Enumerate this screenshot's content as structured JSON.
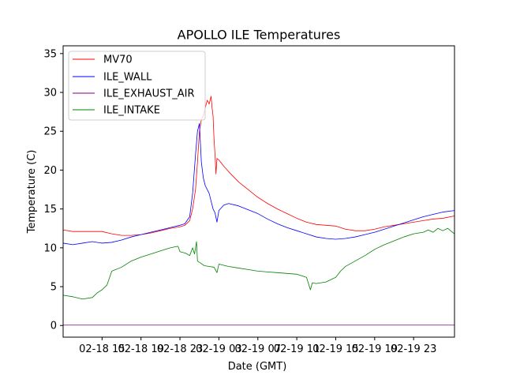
{
  "chart_data": {
    "type": "line",
    "title": "APOLLO ILE Temperatures",
    "xlabel": "Date (GMT)",
    "ylabel": "Temperature (C)",
    "x_unit": "hours since 02-18 11:00 GMT",
    "xlim": [
      0,
      40.2
    ],
    "ylim": [
      -1.5,
      36
    ],
    "yticks": [
      0,
      5,
      10,
      15,
      20,
      25,
      30,
      35
    ],
    "xticks": [
      {
        "x": 4,
        "label": "02-18 15"
      },
      {
        "x": 8,
        "label": "02-18 19"
      },
      {
        "x": 12,
        "label": "02-18 23"
      },
      {
        "x": 16,
        "label": "02-19 03"
      },
      {
        "x": 20,
        "label": "02-19 07"
      },
      {
        "x": 24,
        "label": "02-19 11"
      },
      {
        "x": 28,
        "label": "02-19 15"
      },
      {
        "x": 32,
        "label": "02-19 19"
      },
      {
        "x": 36,
        "label": "02-19 23"
      }
    ],
    "legend_position": "top-left",
    "series": [
      {
        "name": "MV70",
        "color": "#ff0000",
        "points": [
          [
            0,
            12.3
          ],
          [
            1,
            12.1
          ],
          [
            2,
            12.1
          ],
          [
            3,
            12.1
          ],
          [
            4,
            12.1
          ],
          [
            5,
            11.8
          ],
          [
            6,
            11.6
          ],
          [
            7,
            11.6
          ],
          [
            8,
            11.7
          ],
          [
            9,
            11.9
          ],
          [
            10,
            12.2
          ],
          [
            11,
            12.5
          ],
          [
            12,
            12.7
          ],
          [
            12.5,
            12.9
          ],
          [
            13,
            13.5
          ],
          [
            13.3,
            15.0
          ],
          [
            13.6,
            17.5
          ],
          [
            13.8,
            21.0
          ],
          [
            14.0,
            25.0
          ],
          [
            14.2,
            26.5
          ],
          [
            14.4,
            27.0
          ],
          [
            14.6,
            28.0
          ],
          [
            14.8,
            29.0
          ],
          [
            15.0,
            28.5
          ],
          [
            15.2,
            29.5
          ],
          [
            15.3,
            28.0
          ],
          [
            15.4,
            27.0
          ],
          [
            15.5,
            24.0
          ],
          [
            15.6,
            22.0
          ],
          [
            15.7,
            19.5
          ],
          [
            15.8,
            21.5
          ],
          [
            16.0,
            21.3
          ],
          [
            16.5,
            20.5
          ],
          [
            17.0,
            19.8
          ],
          [
            18.0,
            18.5
          ],
          [
            19.0,
            17.5
          ],
          [
            20.0,
            16.5
          ],
          [
            21.0,
            15.7
          ],
          [
            22.0,
            15.0
          ],
          [
            23.0,
            14.4
          ],
          [
            24.0,
            13.8
          ],
          [
            25.0,
            13.3
          ],
          [
            26.0,
            13.0
          ],
          [
            27.0,
            12.9
          ],
          [
            28.0,
            12.8
          ],
          [
            29.0,
            12.4
          ],
          [
            30.0,
            12.2
          ],
          [
            31.0,
            12.2
          ],
          [
            32.0,
            12.4
          ],
          [
            33.0,
            12.7
          ],
          [
            34.0,
            12.9
          ],
          [
            35.0,
            13.1
          ],
          [
            36.0,
            13.3
          ],
          [
            37.0,
            13.5
          ],
          [
            38.0,
            13.7
          ],
          [
            39.0,
            13.8
          ],
          [
            40.2,
            14.1
          ]
        ]
      },
      {
        "name": "ILE_WALL",
        "color": "#0000ff",
        "points": [
          [
            0,
            10.6
          ],
          [
            1,
            10.4
          ],
          [
            2,
            10.6
          ],
          [
            3,
            10.8
          ],
          [
            4,
            10.6
          ],
          [
            5,
            10.7
          ],
          [
            6,
            11.0
          ],
          [
            7,
            11.4
          ],
          [
            8,
            11.7
          ],
          [
            9,
            12.0
          ],
          [
            10,
            12.3
          ],
          [
            11,
            12.6
          ],
          [
            12,
            12.9
          ],
          [
            12.5,
            13.1
          ],
          [
            13,
            14.0
          ],
          [
            13.3,
            17.0
          ],
          [
            13.6,
            22.0
          ],
          [
            13.8,
            25.0
          ],
          [
            14.0,
            26.0
          ],
          [
            14.2,
            21.0
          ],
          [
            14.4,
            19.0
          ],
          [
            14.6,
            18.0
          ],
          [
            14.8,
            17.5
          ],
          [
            15.0,
            17.0
          ],
          [
            15.2,
            16.0
          ],
          [
            15.4,
            15.0
          ],
          [
            15.6,
            14.5
          ],
          [
            15.8,
            13.3
          ],
          [
            16.0,
            14.8
          ],
          [
            16.5,
            15.5
          ],
          [
            17.0,
            15.7
          ],
          [
            18.0,
            15.4
          ],
          [
            19.0,
            14.9
          ],
          [
            20.0,
            14.4
          ],
          [
            21.0,
            13.7
          ],
          [
            22.0,
            13.1
          ],
          [
            23.0,
            12.6
          ],
          [
            24.0,
            12.2
          ],
          [
            25.0,
            11.8
          ],
          [
            26.0,
            11.4
          ],
          [
            27.0,
            11.2
          ],
          [
            28.0,
            11.1
          ],
          [
            29.0,
            11.2
          ],
          [
            30.0,
            11.4
          ],
          [
            31.0,
            11.7
          ],
          [
            32.0,
            12.0
          ],
          [
            33.0,
            12.4
          ],
          [
            34.0,
            12.8
          ],
          [
            35.0,
            13.2
          ],
          [
            36.0,
            13.6
          ],
          [
            37.0,
            14.0
          ],
          [
            38.0,
            14.3
          ],
          [
            39.0,
            14.6
          ],
          [
            40.2,
            14.8
          ]
        ]
      },
      {
        "name": "ILE_EXHAUST_AIR",
        "color": "#800080",
        "points": [
          [
            0,
            0.05
          ],
          [
            10,
            0.05
          ],
          [
            20,
            0.05
          ],
          [
            30,
            0.05
          ],
          [
            40.2,
            0.05
          ]
        ]
      },
      {
        "name": "ILE_INTAKE",
        "color": "#008000",
        "points": [
          [
            0,
            3.9
          ],
          [
            1,
            3.7
          ],
          [
            2,
            3.4
          ],
          [
            3,
            3.6
          ],
          [
            3.5,
            4.2
          ],
          [
            4,
            4.6
          ],
          [
            4.5,
            5.2
          ],
          [
            5,
            7.0
          ],
          [
            6,
            7.5
          ],
          [
            7,
            8.3
          ],
          [
            8,
            8.8
          ],
          [
            9,
            9.2
          ],
          [
            10,
            9.6
          ],
          [
            11,
            10.0
          ],
          [
            11.8,
            10.2
          ],
          [
            12,
            9.5
          ],
          [
            12.3,
            9.4
          ],
          [
            12.6,
            9.3
          ],
          [
            13,
            9.0
          ],
          [
            13.3,
            10.0
          ],
          [
            13.5,
            9.2
          ],
          [
            13.7,
            10.8
          ],
          [
            13.8,
            8.3
          ],
          [
            14.5,
            7.7
          ],
          [
            15.0,
            7.6
          ],
          [
            15.5,
            7.5
          ],
          [
            15.8,
            6.8
          ],
          [
            16.0,
            7.9
          ],
          [
            17.0,
            7.6
          ],
          [
            18.0,
            7.4
          ],
          [
            19.0,
            7.2
          ],
          [
            20.0,
            7.0
          ],
          [
            21.0,
            6.9
          ],
          [
            22.0,
            6.8
          ],
          [
            23.0,
            6.7
          ],
          [
            24.0,
            6.6
          ],
          [
            25.0,
            6.2
          ],
          [
            25.4,
            4.6
          ],
          [
            25.6,
            5.5
          ],
          [
            26.0,
            5.4
          ],
          [
            27.0,
            5.6
          ],
          [
            28.0,
            6.2
          ],
          [
            28.5,
            7.0
          ],
          [
            29.0,
            7.6
          ],
          [
            30.0,
            8.3
          ],
          [
            31.0,
            9.0
          ],
          [
            32.0,
            9.8
          ],
          [
            33.0,
            10.4
          ],
          [
            34.0,
            10.9
          ],
          [
            35.0,
            11.4
          ],
          [
            36.0,
            11.8
          ],
          [
            37.0,
            12.0
          ],
          [
            37.5,
            12.3
          ],
          [
            38.0,
            12.0
          ],
          [
            38.5,
            12.5
          ],
          [
            39.0,
            12.2
          ],
          [
            39.5,
            12.5
          ],
          [
            40.2,
            11.8
          ]
        ]
      }
    ]
  }
}
